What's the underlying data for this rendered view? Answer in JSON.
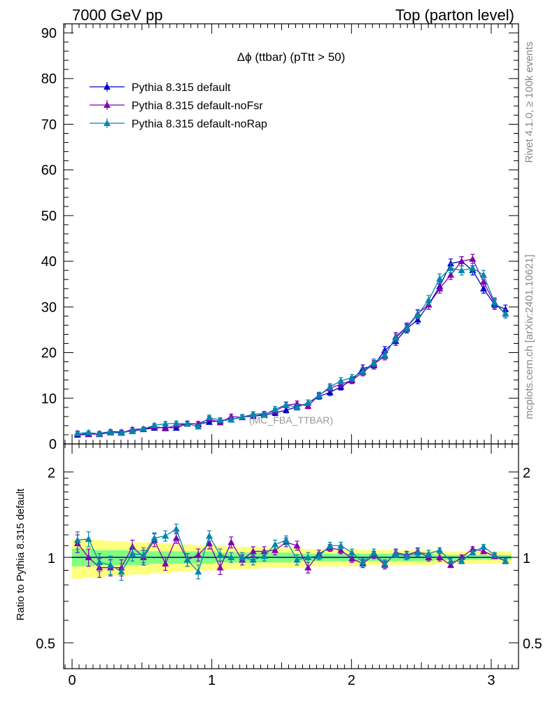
{
  "header": {
    "left_label": "7000 GeV pp",
    "right_label": "Top (parton level)"
  },
  "side_labels": {
    "rivet": "Rivet 4.1.0, ≥ 100k events",
    "mcplots": "mcplots.cern.ch [arXiv:2401.10621]"
  },
  "colors": {
    "default": "#0000cc",
    "noFsr": "#8000b0",
    "noRap": "#0088aa",
    "band_yellow": "#ffff80",
    "band_green": "#80ff80"
  },
  "chart_data": [
    {
      "type": "line",
      "title": "Δϕ (ttbar) (pTtt > 50)",
      "watermark": "(MC_FBA_TTBAR)",
      "xlabel": "",
      "ylabel": "",
      "xlim": [
        -0.08,
        3.2
      ],
      "ylim": [
        0,
        92
      ],
      "yticks": [
        0,
        10,
        20,
        30,
        40,
        50,
        60,
        70,
        80,
        90
      ],
      "tick_labels": [
        "0",
        "10",
        "20",
        "30",
        "40",
        "50",
        "60",
        "70",
        "80",
        "90"
      ],
      "x": [
        0.039,
        0.118,
        0.196,
        0.275,
        0.353,
        0.432,
        0.511,
        0.589,
        0.668,
        0.746,
        0.825,
        0.903,
        0.982,
        1.06,
        1.139,
        1.218,
        1.296,
        1.375,
        1.453,
        1.532,
        1.61,
        1.689,
        1.767,
        1.846,
        1.924,
        2.003,
        2.081,
        2.16,
        2.238,
        2.317,
        2.395,
        2.474,
        2.552,
        2.631,
        2.71,
        2.788,
        2.867,
        2.945,
        3.024,
        3.102
      ],
      "series": [
        {
          "name": "Pythia 8.315 default",
          "color_key": "default",
          "values": [
            2.0,
            2.1,
            2.3,
            2.7,
            2.6,
            2.8,
            3.2,
            3.5,
            3.6,
            3.5,
            4.5,
            4.3,
            4.8,
            5.1,
            5.3,
            5.9,
            6.1,
            6.3,
            6.8,
            7.4,
            8.1,
            9.0,
            10.4,
            11.3,
            12.5,
            14.0,
            16.5,
            17.2,
            20.5,
            22.5,
            25.2,
            27.2,
            30.5,
            34.5,
            39.5,
            40.0,
            38.0,
            34.0,
            30.5,
            29.5
          ],
          "errors": [
            0.4,
            0.4,
            0.4,
            0.4,
            0.4,
            0.4,
            0.4,
            0.4,
            0.5,
            0.5,
            0.5,
            0.5,
            0.5,
            0.5,
            0.5,
            0.5,
            0.5,
            0.5,
            0.6,
            0.6,
            0.6,
            0.6,
            0.6,
            0.7,
            0.7,
            0.7,
            0.8,
            0.8,
            0.8,
            0.9,
            0.9,
            0.9,
            1.0,
            1.0,
            1.0,
            1.0,
            1.0,
            1.0,
            1.0,
            0.9
          ]
        },
        {
          "name": "Pythia 8.315 default-noFsr",
          "color_key": "noFsr",
          "values": [
            2.4,
            2.2,
            2.1,
            2.5,
            2.4,
            3.2,
            3.3,
            3.8,
            3.4,
            4.1,
            4.4,
            4.4,
            5.5,
            4.7,
            6.0,
            5.8,
            6.5,
            6.6,
            7.2,
            8.5,
            8.8,
            8.3,
            10.7,
            12.2,
            13.1,
            13.9,
            15.7,
            17.5,
            19.2,
            23.5,
            25.6,
            28.5,
            30.5,
            34.0,
            37.0,
            40.0,
            40.5,
            35.5,
            30.8,
            28.5
          ],
          "errors": [
            0.4,
            0.4,
            0.4,
            0.4,
            0.4,
            0.4,
            0.4,
            0.4,
            0.5,
            0.5,
            0.5,
            0.5,
            0.5,
            0.5,
            0.5,
            0.5,
            0.5,
            0.5,
            0.6,
            0.6,
            0.6,
            0.6,
            0.6,
            0.7,
            0.7,
            0.7,
            0.8,
            0.8,
            0.8,
            0.9,
            0.9,
            0.9,
            1.0,
            1.0,
            1.0,
            1.0,
            1.0,
            1.0,
            1.0,
            0.9
          ]
        },
        {
          "name": "Pythia 8.315 default-noRap",
          "color_key": "noRap",
          "values": [
            2.3,
            2.5,
            2.2,
            2.6,
            2.4,
            2.9,
            3.3,
            4.1,
            4.4,
            4.5,
            4.4,
            3.8,
            5.8,
            5.2,
            5.3,
            5.9,
            6.5,
            6.4,
            7.6,
            8.6,
            8.0,
            9.0,
            10.6,
            12.5,
            13.8,
            14.5,
            15.9,
            17.8,
            19.5,
            23.2,
            25.4,
            28.3,
            31.5,
            36.2,
            38.5,
            38.0,
            38.5,
            37.0,
            31.0,
            28.5
          ],
          "errors": [
            0.4,
            0.4,
            0.4,
            0.4,
            0.4,
            0.4,
            0.4,
            0.4,
            0.5,
            0.5,
            0.5,
            0.5,
            0.5,
            0.5,
            0.5,
            0.5,
            0.5,
            0.5,
            0.6,
            0.6,
            0.6,
            0.6,
            0.6,
            0.7,
            0.7,
            0.7,
            0.8,
            0.8,
            0.8,
            0.9,
            0.9,
            0.9,
            1.0,
            1.0,
            1.0,
            1.0,
            1.0,
            1.0,
            1.0,
            0.9
          ]
        }
      ]
    },
    {
      "type": "line",
      "title": "",
      "xlabel": "",
      "ylabel": "Ratio to Pythia 8.315 default",
      "xlim": [
        -0.08,
        3.2
      ],
      "ylim": [
        0.4,
        2.45
      ],
      "yscale": "log",
      "yticks": [
        0.5,
        1,
        2
      ],
      "tick_labels": [
        "0.5",
        "1",
        "2"
      ],
      "xticks": [
        0,
        1,
        2,
        3
      ],
      "xtick_labels": [
        "0",
        "1",
        "2",
        "3"
      ],
      "reference_line": 1,
      "band_yellow_halfwidth": [
        0.16,
        0.15,
        0.15,
        0.14,
        0.14,
        0.13,
        0.13,
        0.12,
        0.12,
        0.11,
        0.11,
        0.1,
        0.1,
        0.1,
        0.09,
        0.09,
        0.09,
        0.08,
        0.08,
        0.08,
        0.08,
        0.07,
        0.07,
        0.07,
        0.07,
        0.07,
        0.06,
        0.06,
        0.06,
        0.06,
        0.06,
        0.06,
        0.06,
        0.05,
        0.05,
        0.05,
        0.05,
        0.05,
        0.05,
        0.05
      ],
      "band_green_halfwidth": [
        0.07,
        0.07,
        0.06,
        0.06,
        0.06,
        0.06,
        0.06,
        0.05,
        0.05,
        0.05,
        0.05,
        0.05,
        0.05,
        0.04,
        0.04,
        0.04,
        0.04,
        0.04,
        0.04,
        0.04,
        0.03,
        0.03,
        0.03,
        0.03,
        0.03,
        0.03,
        0.03,
        0.03,
        0.03,
        0.03,
        0.03,
        0.03,
        0.03,
        0.02,
        0.02,
        0.02,
        0.02,
        0.02,
        0.02,
        0.02
      ],
      "series": [
        {
          "name": "Pythia 8.315 default-noFsr",
          "color_key": "noFsr",
          "values": [
            1.12,
            1.0,
            0.92,
            0.92,
            0.92,
            1.09,
            1.0,
            1.15,
            0.95,
            1.17,
            0.98,
            1.02,
            1.12,
            0.92,
            1.13,
            0.98,
            1.05,
            1.05,
            1.06,
            1.13,
            1.1,
            0.92,
            1.03,
            1.08,
            1.06,
            0.99,
            0.95,
            1.02,
            0.94,
            1.04,
            1.02,
            1.05,
            1.0,
            1.0,
            0.94,
            1.0,
            1.07,
            1.05,
            1.01,
            0.97
          ],
          "errors": [
            0.08,
            0.07,
            0.07,
            0.06,
            0.06,
            0.06,
            0.06,
            0.06,
            0.05,
            0.05,
            0.05,
            0.05,
            0.05,
            0.05,
            0.05,
            0.04,
            0.04,
            0.04,
            0.04,
            0.04,
            0.04,
            0.04,
            0.03,
            0.03,
            0.03,
            0.03,
            0.03,
            0.03,
            0.03,
            0.03,
            0.03,
            0.03,
            0.03,
            0.03,
            0.02,
            0.02,
            0.02,
            0.02,
            0.02,
            0.02
          ]
        },
        {
          "name": "Pythia 8.315 default-noRap",
          "color_key": "noRap",
          "values": [
            1.15,
            1.16,
            0.96,
            0.94,
            0.89,
            1.03,
            1.02,
            1.17,
            1.19,
            1.26,
            0.98,
            0.89,
            1.19,
            1.02,
            1.0,
            1.0,
            0.98,
            1.01,
            1.11,
            1.15,
            0.98,
            1.0,
            1.01,
            1.1,
            1.1,
            1.04,
            0.96,
            1.04,
            0.95,
            1.03,
            1.01,
            1.04,
            1.03,
            1.06,
            0.97,
            0.97,
            1.04,
            1.09,
            1.02,
            0.97
          ],
          "errors": [
            0.08,
            0.07,
            0.07,
            0.07,
            0.06,
            0.06,
            0.06,
            0.05,
            0.05,
            0.05,
            0.05,
            0.05,
            0.05,
            0.05,
            0.04,
            0.04,
            0.04,
            0.04,
            0.04,
            0.04,
            0.04,
            0.04,
            0.03,
            0.03,
            0.03,
            0.03,
            0.03,
            0.03,
            0.03,
            0.03,
            0.03,
            0.03,
            0.03,
            0.02,
            0.02,
            0.02,
            0.02,
            0.02,
            0.02,
            0.02
          ]
        }
      ]
    }
  ]
}
